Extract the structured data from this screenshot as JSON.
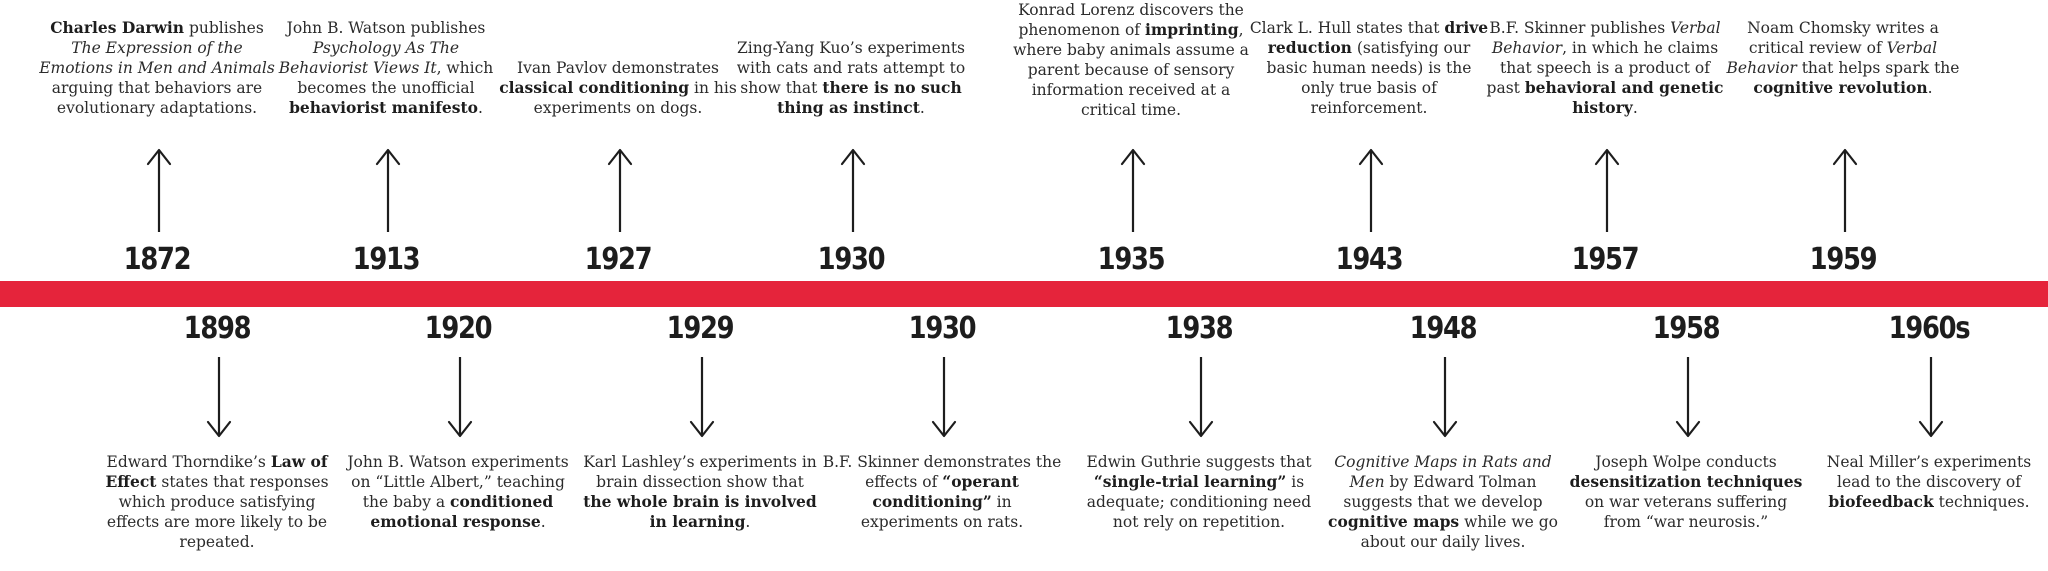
{
  "events_above": [
    {
      "year": "1872",
      "parts": [
        [
          "b",
          "Charles Darwin"
        ],
        [
          "t",
          " publishes "
        ],
        [
          "i",
          "The Expression of the Emotions in Men and Animals"
        ],
        [
          "t",
          " arguing that behaviors are evolutionary adaptations."
        ]
      ]
    },
    {
      "year": "1913",
      "parts": [
        [
          "t",
          "John B. Watson publishes "
        ],
        [
          "i",
          "Psychology As The Behaviorist Views It"
        ],
        [
          "t",
          ", which becomes the unofficial "
        ],
        [
          "b",
          "behaviorist manifesto"
        ],
        [
          "t",
          "."
        ]
      ]
    },
    {
      "year": "1927",
      "parts": [
        [
          "t",
          "Ivan Pavlov demonstrates "
        ],
        [
          "b",
          "classical conditioning"
        ],
        [
          "t",
          " in his experiments on dogs."
        ]
      ]
    },
    {
      "year": "1930",
      "parts": [
        [
          "t",
          "Zing-Yang Kuo’s experiments with cats and rats attempt to show that "
        ],
        [
          "b",
          "there is no such thing as instinct"
        ],
        [
          "t",
          "."
        ]
      ]
    },
    {
      "year": "1935",
      "parts": [
        [
          "t",
          "Konrad Lorenz discovers the phenomenon of "
        ],
        [
          "b",
          "imprinting"
        ],
        [
          "t",
          ", where baby animals assume a parent because of sensory information received at a critical time."
        ]
      ]
    },
    {
      "year": "1943",
      "parts": [
        [
          "t",
          "Clark L. Hull states that "
        ],
        [
          "b",
          "drive reduction"
        ],
        [
          "t",
          " (satisfying our basic human needs) is the only true basis of reinforcement."
        ]
      ]
    },
    {
      "year": "1957",
      "parts": [
        [
          "t",
          "B.F. Skinner publishes "
        ],
        [
          "i",
          "Verbal Behavior"
        ],
        [
          "t",
          ", in which he claims that speech is a product of past "
        ],
        [
          "b",
          "behavioral and genetic history"
        ],
        [
          "t",
          "."
        ]
      ]
    },
    {
      "year": "1959",
      "parts": [
        [
          "t",
          "Noam Chomsky writes a critical review of "
        ],
        [
          "i",
          "Verbal Behavior"
        ],
        [
          "t",
          " that helps spark the "
        ],
        [
          "b",
          "cognitive revolution"
        ],
        [
          "t",
          "."
        ]
      ]
    }
  ],
  "events_below": [
    {
      "year": "1898",
      "parts": [
        [
          "t",
          "Edward Thorndike’s "
        ],
        [
          "b",
          "Law of Effect"
        ],
        [
          "t",
          " states that responses which produce satisfying effects are more likely to be repeated."
        ]
      ]
    },
    {
      "year": "1920",
      "parts": [
        [
          "t",
          "John B. Watson experiments on “Little Albert,” teaching the baby a "
        ],
        [
          "b",
          "conditioned emotional response"
        ],
        [
          "t",
          "."
        ]
      ]
    },
    {
      "year": "1929",
      "parts": [
        [
          "t",
          "Karl Lashley’s experiments in brain dissection show that "
        ],
        [
          "b",
          "the whole brain is involved in learning"
        ],
        [
          "t",
          "."
        ]
      ]
    },
    {
      "year": "1930",
      "parts": [
        [
          "t",
          "B.F. Skinner demonstrates the effects of "
        ],
        [
          "b",
          "“operant conditioning”"
        ],
        [
          "t",
          " in experiments on rats."
        ]
      ]
    },
    {
      "year": "1938",
      "parts": [
        [
          "t",
          "Edwin Guthrie suggests that "
        ],
        [
          "b",
          "“single-trial learning”"
        ],
        [
          "t",
          " is adequate; conditioning need not rely on repetition."
        ]
      ]
    },
    {
      "year": "1948",
      "parts": [
        [
          "i",
          "Cognitive Maps in Rats and Men"
        ],
        [
          "t",
          " by Edward Tolman suggests that we develop "
        ],
        [
          "b",
          "cognitive maps"
        ],
        [
          "t",
          " while we go about our daily lives."
        ]
      ]
    },
    {
      "year": "1958",
      "parts": [
        [
          "t",
          "Joseph Wolpe conducts "
        ],
        [
          "b",
          "desensitization techniques"
        ],
        [
          "t",
          " on war veterans suffering from “war neurosis.”"
        ]
      ]
    },
    {
      "year": "1960s",
      "parts": [
        [
          "t",
          "Neal Miller’s experiments lead to the discovery of "
        ],
        [
          "b",
          "biofeedback"
        ],
        [
          "t",
          " techniques."
        ]
      ]
    }
  ],
  "colors": {
    "bar": "#e5243b",
    "ink": "#1d1d1d"
  }
}
